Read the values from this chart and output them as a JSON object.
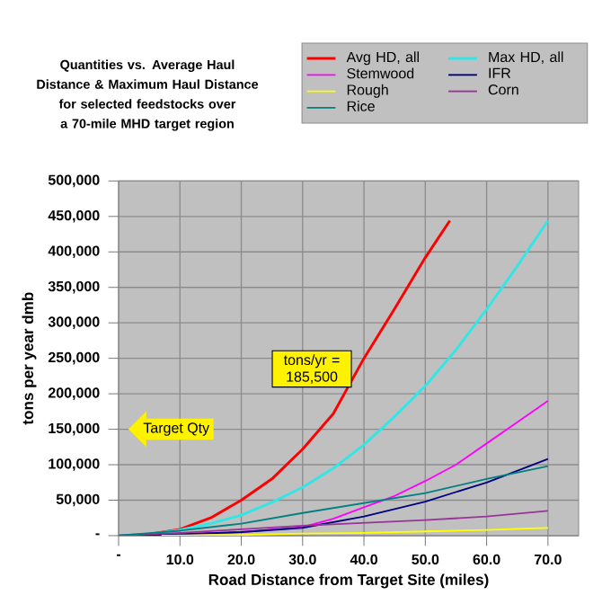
{
  "chart_data": {
    "type": "line",
    "title": "Quantities vs. Average Haul Distance & Maximum Haul Distance for selected feedstocks over a 70-mile MHD target region",
    "xlabel": "Road Distance from Target Site (miles)",
    "ylabel": "tons per year dmb",
    "xlim": [
      0,
      75
    ],
    "ylim": [
      0,
      500000
    ],
    "xticks": [
      {
        "value": 0,
        "label": "-"
      },
      {
        "value": 10,
        "label": "10.0"
      },
      {
        "value": 20,
        "label": "20.0"
      },
      {
        "value": 30,
        "label": "30.0"
      },
      {
        "value": 40,
        "label": "40.0"
      },
      {
        "value": 50,
        "label": "50.0"
      },
      {
        "value": 60,
        "label": "60.0"
      },
      {
        "value": 70,
        "label": "70.0"
      }
    ],
    "yticks": [
      {
        "value": 0,
        "label": "-"
      },
      {
        "value": 50000,
        "label": "50,000"
      },
      {
        "value": 100000,
        "label": "100,000"
      },
      {
        "value": 150000,
        "label": "150,000"
      },
      {
        "value": 200000,
        "label": "200,000"
      },
      {
        "value": 250000,
        "label": "250,000"
      },
      {
        "value": 300000,
        "label": "300,000"
      },
      {
        "value": 350000,
        "label": "350,000"
      },
      {
        "value": 400000,
        "label": "400,000"
      },
      {
        "value": 450000,
        "label": "450,000"
      },
      {
        "value": 500000,
        "label": "500,000"
      }
    ],
    "grid": true,
    "legend": "top right",
    "marker": "none",
    "line_style": "solid",
    "series": [
      {
        "name": "Avg HD, all",
        "color": "#ff0000",
        "x": [
          0,
          5,
          10,
          15,
          20,
          25,
          30,
          35,
          40,
          45,
          50,
          54
        ],
        "values": [
          0,
          2000,
          9000,
          25000,
          50000,
          80000,
          122000,
          172000,
          250000,
          320000,
          392000,
          444000
        ]
      },
      {
        "name": "Max HD, all",
        "color": "#33e6e6",
        "x": [
          0,
          5,
          10,
          15,
          20,
          25,
          30,
          35,
          40,
          45,
          50,
          55,
          60,
          65,
          70
        ],
        "values": [
          0,
          2000,
          8000,
          17000,
          29000,
          47000,
          68000,
          95000,
          128000,
          168000,
          211000,
          262000,
          319000,
          380000,
          444000
        ]
      },
      {
        "name": "Stemwood",
        "color": "#ff00ff",
        "x": [
          0,
          20,
          30,
          35,
          40,
          45,
          50,
          55,
          60,
          65,
          70
        ],
        "values": [
          0,
          5000,
          12000,
          24000,
          40000,
          56000,
          77000,
          100000,
          130000,
          160000,
          190000
        ]
      },
      {
        "name": "IFR",
        "color": "#000080",
        "x": [
          0,
          10,
          20,
          30,
          40,
          50,
          60,
          70
        ],
        "values": [
          0,
          2000,
          5000,
          11000,
          27000,
          48000,
          75000,
          108000
        ]
      },
      {
        "name": "Rough",
        "color": "#ffff00",
        "x": [
          7,
          20,
          30,
          40,
          50,
          60,
          70
        ],
        "values": [
          0,
          1000,
          3000,
          4000,
          6000,
          8000,
          11000
        ]
      },
      {
        "name": "Corn",
        "color": "#993399",
        "x": [
          0,
          10,
          20,
          30,
          40,
          50,
          60,
          70
        ],
        "values": [
          0,
          4000,
          9000,
          14000,
          18000,
          22000,
          27000,
          35000
        ]
      },
      {
        "name": "Rice",
        "color": "#008080",
        "x": [
          0,
          10,
          20,
          30,
          40,
          50,
          60,
          70
        ],
        "values": [
          0,
          7000,
          17000,
          32000,
          46000,
          60000,
          80000,
          98000
        ]
      }
    ],
    "annotations": [
      "tons/yr = 185,500",
      "Target Qty"
    ]
  }
}
